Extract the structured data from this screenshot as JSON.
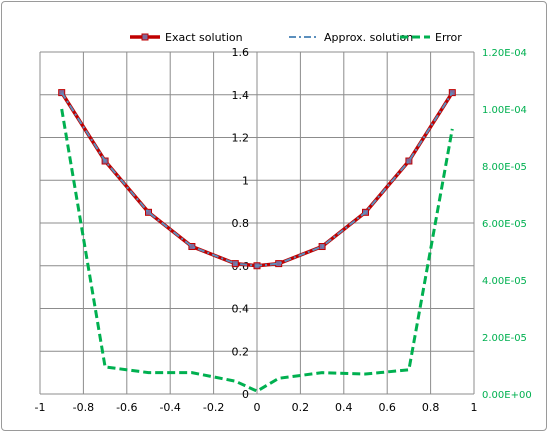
{
  "chart_data": {
    "type": "line",
    "x": [
      -0.9,
      -0.7,
      -0.5,
      -0.3,
      -0.1,
      0,
      0.1,
      0.3,
      0.5,
      0.7,
      0.9
    ],
    "series": [
      {
        "name": "Exact solution",
        "axis": "left",
        "color": "#c00000",
        "marker": "square",
        "marker_color": "#7f6a9a",
        "style": "solid",
        "values": [
          1.41,
          1.09,
          0.85,
          0.69,
          0.61,
          0.6,
          0.61,
          0.69,
          0.85,
          1.09,
          1.41
        ]
      },
      {
        "name": "Approx. solution",
        "axis": "left",
        "color": "#5b8fbd",
        "style": "dash-dot",
        "values": [
          1.41,
          1.09,
          0.85,
          0.69,
          0.61,
          0.6,
          0.61,
          0.69,
          0.85,
          1.09,
          1.41
        ]
      },
      {
        "name": "Error",
        "axis": "right",
        "color": "#00b050",
        "style": "dashed",
        "values": [
          0.0001,
          9.5e-06,
          7.5e-06,
          7.5e-06,
          4.5e-06,
          1e-06,
          5.5e-06,
          7.5e-06,
          7e-06,
          8.5e-06,
          9.3e-05
        ]
      }
    ],
    "xlim": [
      -1,
      1
    ],
    "ylim": [
      0,
      1.6
    ],
    "y2lim": [
      0,
      0.00012
    ],
    "x_ticks": [
      "-1",
      "-0.8",
      "-0.6",
      "-0.4",
      "-0.2",
      "0",
      "0.2",
      "0.4",
      "0.6",
      "0.8",
      "1"
    ],
    "y_ticks": [
      "0",
      "0.2",
      "0.4",
      "0.6",
      "0.8",
      "1",
      "1.2",
      "1.4",
      "1.6"
    ],
    "y2_ticks": [
      "0.00E+00",
      "2.00E-05",
      "4.00E-05",
      "6.00E-05",
      "8.00E-05",
      "1.00E-04",
      "1.20E-04"
    ],
    "grid": true,
    "legend_position": "top",
    "title": "",
    "xlabel": "",
    "ylabel": "",
    "y2label": ""
  }
}
